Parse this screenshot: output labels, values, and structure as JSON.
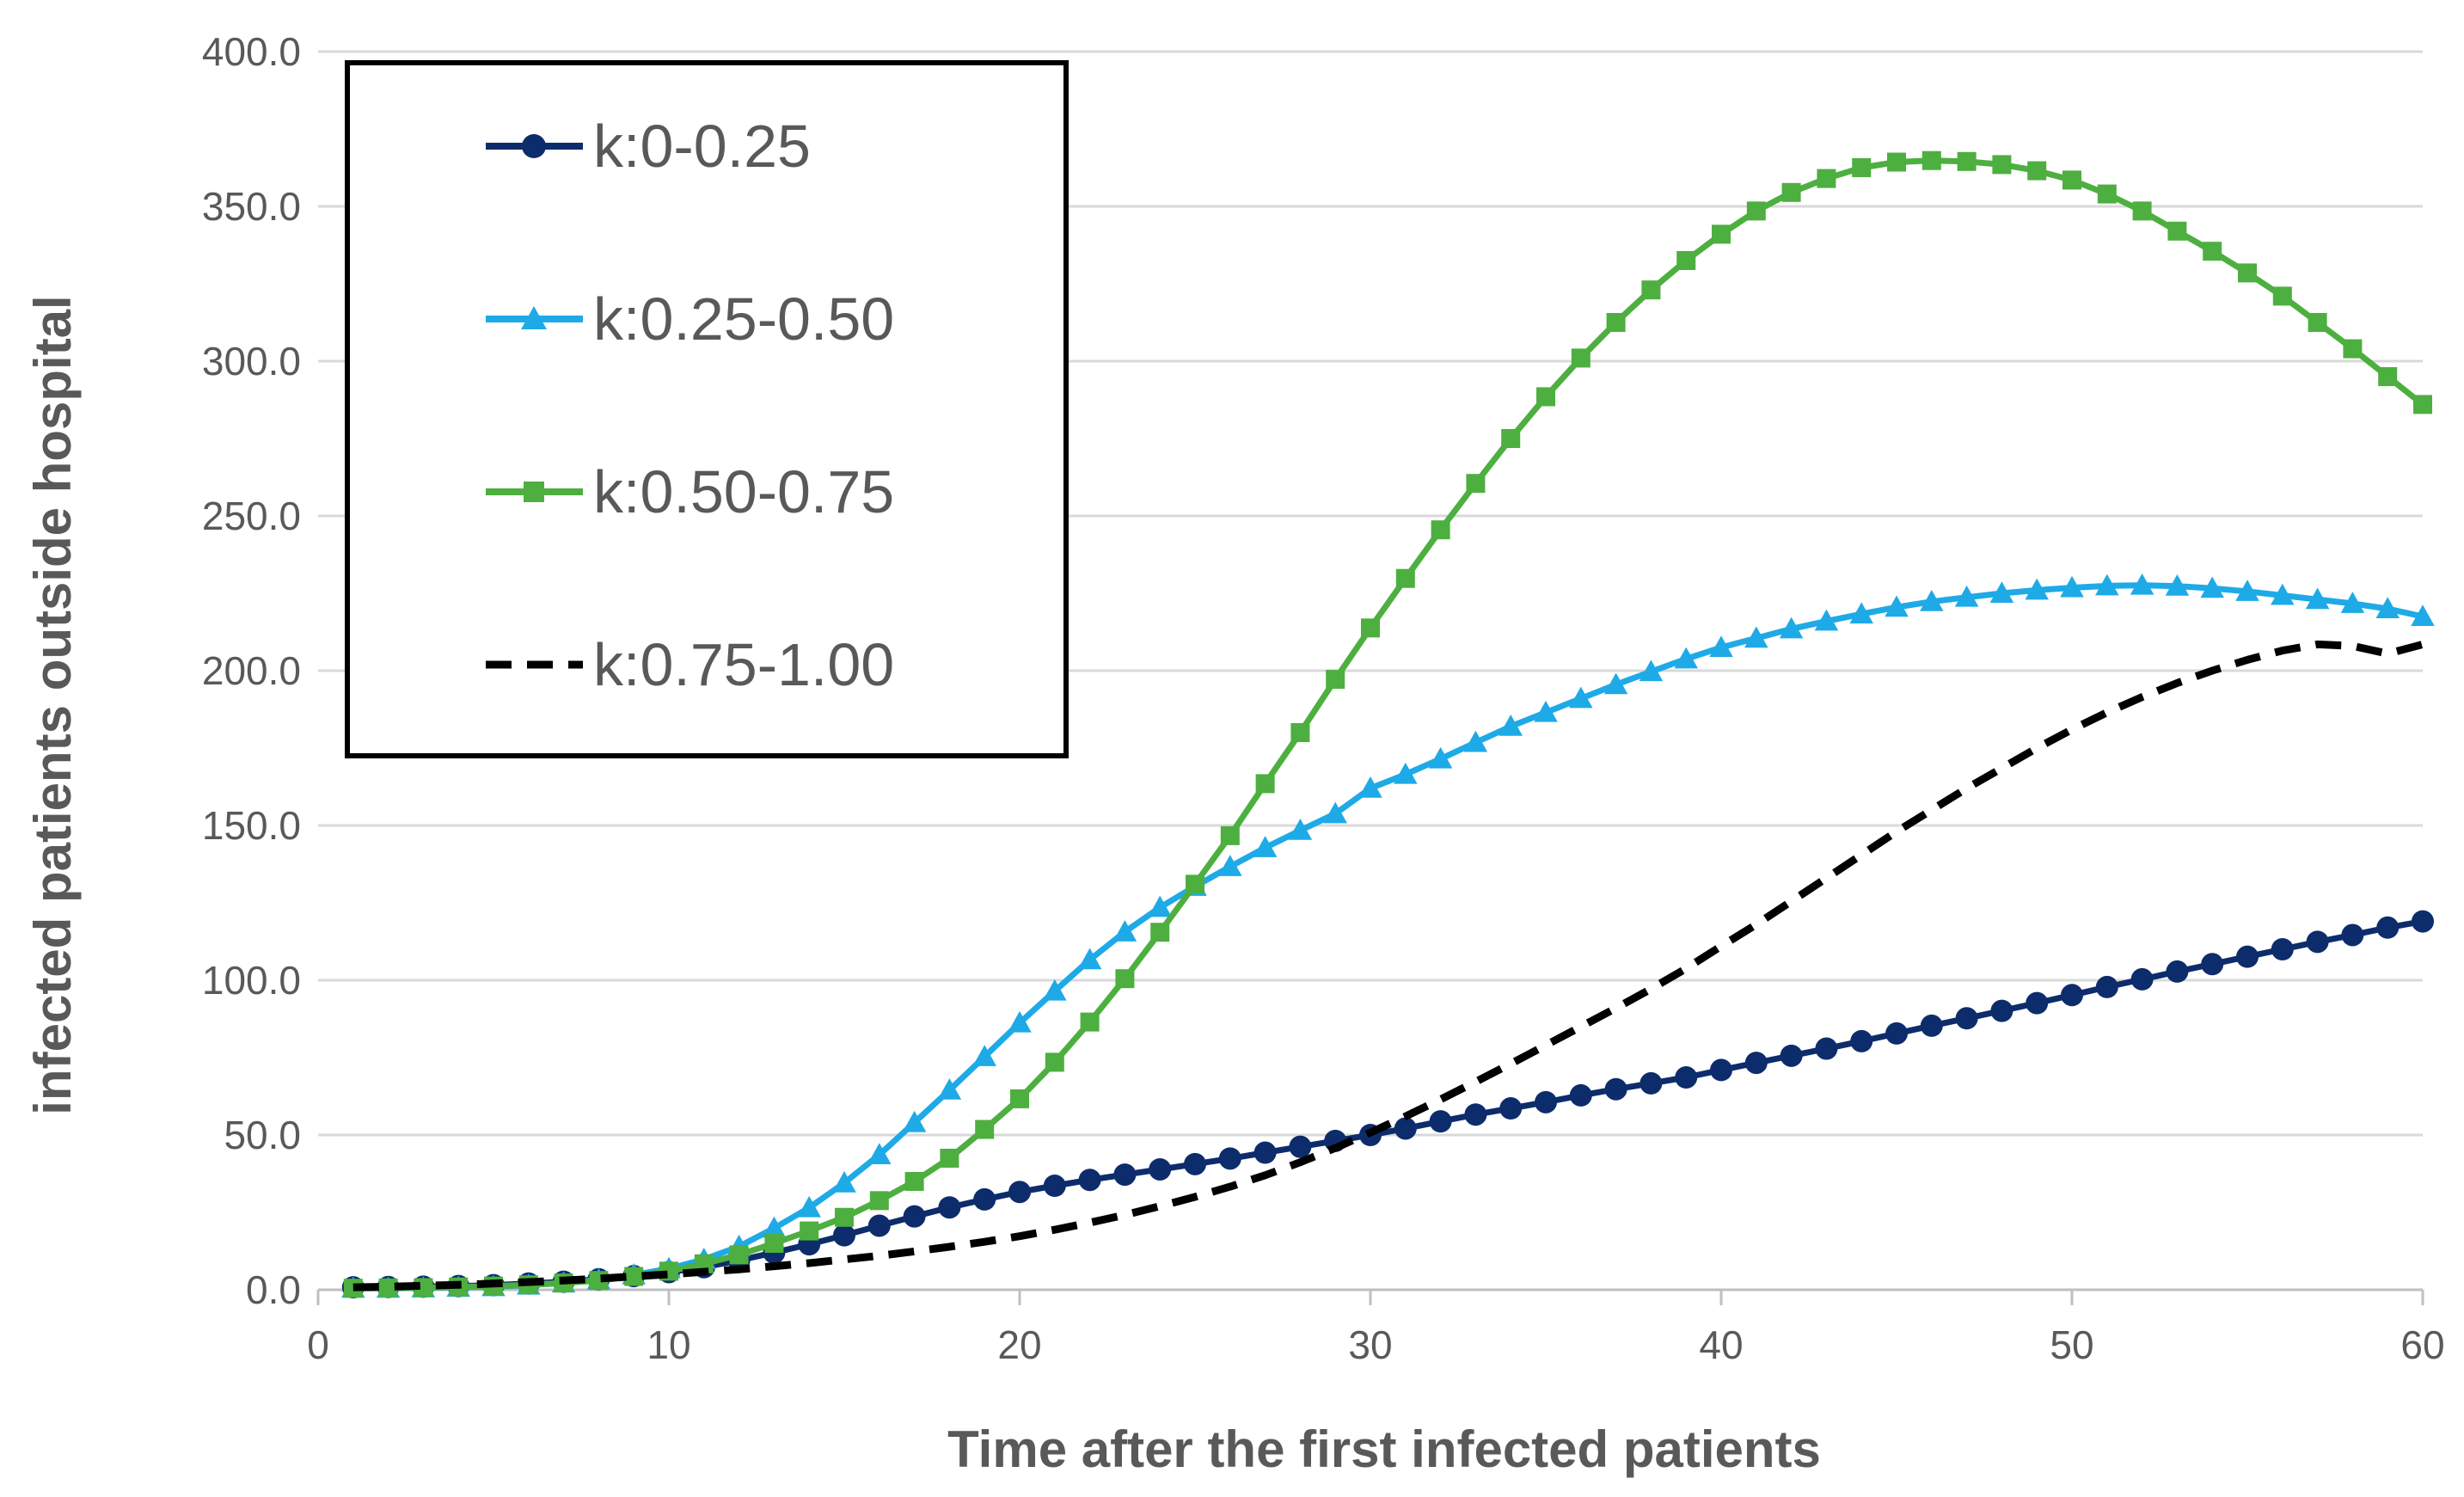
{
  "chart_data": {
    "type": "line",
    "title": "",
    "xlabel": "Time after the first infected patients",
    "ylabel": "infected patients outside hospital",
    "xlim": [
      0,
      60
    ],
    "ylim": [
      0,
      400
    ],
    "xticks": [
      0,
      10,
      20,
      30,
      40,
      50,
      60
    ],
    "yticks": [
      0,
      50,
      100,
      150,
      200,
      250,
      300,
      350,
      400
    ],
    "xtick_labels": [
      "0",
      "10",
      "20",
      "30",
      "40",
      "50",
      "60"
    ],
    "ytick_labels": [
      "0.0",
      "50.0",
      "100.0",
      "150.0",
      "200.0",
      "250.0",
      "300.0",
      "350.0",
      "400.0"
    ],
    "grid": "horizontal",
    "legend_position": "top-left",
    "x": [
      1,
      2,
      3,
      4,
      5,
      6,
      7,
      8,
      9,
      10,
      11,
      12,
      13,
      14,
      15,
      16,
      17,
      18,
      19,
      20,
      21,
      22,
      23,
      24,
      25,
      26,
      27,
      28,
      29,
      30,
      31,
      32,
      33,
      34,
      35,
      36,
      37,
      38,
      39,
      40,
      41,
      42,
      43,
      44,
      45,
      46,
      47,
      48,
      49,
      50,
      51,
      52,
      53,
      54,
      55,
      56,
      57,
      58,
      59,
      60
    ],
    "series": [
      {
        "name": "k:0-0.25",
        "color": "#0d2c6b",
        "marker": "circle",
        "dash": "solid",
        "values": [
          0.8,
          0.9,
          1.0,
          1.2,
          1.5,
          2.0,
          2.6,
          3.4,
          4.4,
          5.7,
          7.3,
          9.5,
          12.0,
          14.7,
          17.6,
          20.7,
          23.7,
          26.6,
          29.2,
          31.6,
          33.6,
          35.5,
          37.2,
          38.9,
          40.6,
          42.4,
          44.3,
          46.2,
          48.1,
          50.0,
          52.1,
          54.4,
          56.6,
          58.6,
          60.6,
          62.8,
          64.8,
          66.7,
          68.6,
          71.0,
          73.3,
          75.6,
          77.9,
          80.3,
          82.8,
          85.3,
          87.7,
          90.1,
          92.6,
          95.2,
          97.8,
          100.3,
          102.8,
          105.2,
          107.6,
          110.0,
          112.4,
          114.6,
          117.0,
          119.0
        ]
      },
      {
        "name": "k:0.25-0.50",
        "color": "#1eaae7",
        "marker": "triangle",
        "dash": "solid",
        "values": [
          0.5,
          0.5,
          0.6,
          0.8,
          1.0,
          1.5,
          2.2,
          3.2,
          4.8,
          6.8,
          9.8,
          14.0,
          19.9,
          26.5,
          34.5,
          43.6,
          54.0,
          64.5,
          75.3,
          86.2,
          96.5,
          106.6,
          115.6,
          123.5,
          130.3,
          136.7,
          142.8,
          148.4,
          153.8,
          162.0,
          166.5,
          171.5,
          176.8,
          182.0,
          186.5,
          191.0,
          195.5,
          199.7,
          203.8,
          207.5,
          210.5,
          213.5,
          216.0,
          218.3,
          220.5,
          222.3,
          223.7,
          225.0,
          226.0,
          226.8,
          227.4,
          227.6,
          227.3,
          226.6,
          225.6,
          224.3,
          223.0,
          221.7,
          220.0,
          217.5
        ]
      },
      {
        "name": "k:0.50-0.75",
        "color": "#4daf3f",
        "marker": "square",
        "dash": "solid",
        "values": [
          0.5,
          0.6,
          0.7,
          0.9,
          1.2,
          1.6,
          2.2,
          3.0,
          4.3,
          6.0,
          8.4,
          11.3,
          15.0,
          19.0,
          23.4,
          28.8,
          35.0,
          42.5,
          51.8,
          61.7,
          73.5,
          86.5,
          100.5,
          115.5,
          131.0,
          146.7,
          163.5,
          180.0,
          197.2,
          213.8,
          229.8,
          245.5,
          260.5,
          275.0,
          288.5,
          301.0,
          312.5,
          323.0,
          332.5,
          341.0,
          348.5,
          354.5,
          359.0,
          362.5,
          364.3,
          364.8,
          364.5,
          363.5,
          361.5,
          358.5,
          354.0,
          348.5,
          342.0,
          335.5,
          328.5,
          321.0,
          312.5,
          304.0,
          295.0,
          286.0
        ]
      },
      {
        "name": "k:0.75-1.00",
        "color": "#000000",
        "marker": "none",
        "dash": "dashed",
        "values": [
          0.8,
          1.0,
          1.3,
          1.6,
          2.0,
          2.5,
          3.0,
          3.6,
          4.3,
          5.0,
          5.8,
          6.6,
          7.6,
          8.6,
          9.8,
          11.0,
          12.4,
          13.9,
          15.5,
          17.3,
          19.4,
          21.7,
          24.2,
          27.0,
          30.0,
          33.3,
          37.0,
          41.2,
          45.8,
          50.8,
          56.0,
          61.5,
          67.2,
          73.0,
          79.0,
          85.0,
          91.0,
          97.2,
          103.8,
          111.0,
          118.0,
          125.5,
          133.0,
          140.5,
          148.0,
          155.0,
          162.0,
          168.5,
          175.0,
          181.0,
          186.5,
          191.5,
          196.0,
          200.0,
          203.5,
          206.5,
          208.5,
          208.0,
          205.5,
          208.5
        ]
      }
    ]
  }
}
